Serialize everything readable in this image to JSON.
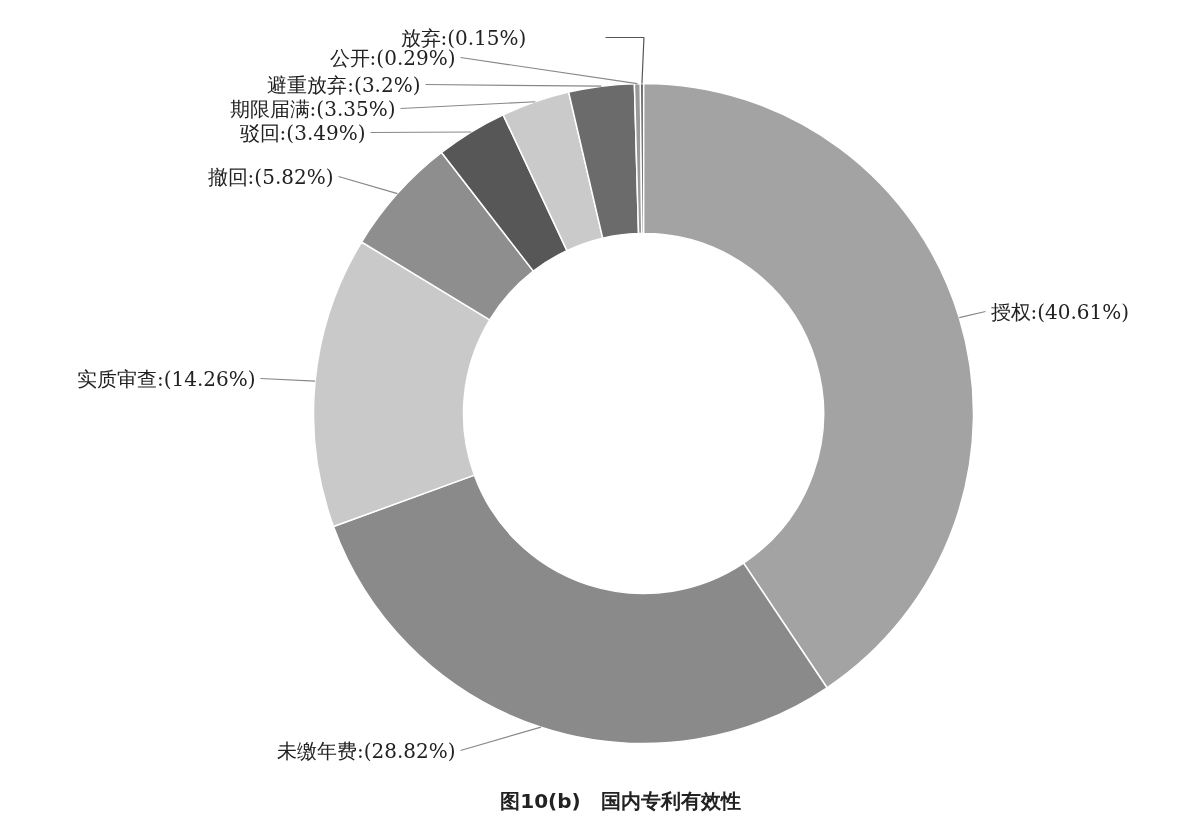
{
  "chart_data": {
    "type": "donut",
    "title": "图10(b)　国内专利有效性",
    "categories": [
      "授权",
      "未缴年费",
      "实质审查",
      "撤回",
      "驳回",
      "期限届满",
      "避重放弃",
      "公开",
      "放弃"
    ],
    "values": [
      40.61,
      28.82,
      14.26,
      5.82,
      3.49,
      3.35,
      3.2,
      0.29,
      0.15
    ],
    "value_labels": [
      "(40.61%)",
      "(28.82%)",
      "(14.26%)",
      "(5.82%)",
      "(3.49%)",
      "(3.35%)",
      "(3.2%)",
      "(0.29%)",
      "(0.15%)"
    ],
    "colors": [
      "#a3a3a3",
      "#8a8a8a",
      "#c9c9c9",
      "#8e8e8e",
      "#575757",
      "#cacaca",
      "#6b6b6b",
      "#9a9a9a",
      "#4a4a4a"
    ]
  }
}
